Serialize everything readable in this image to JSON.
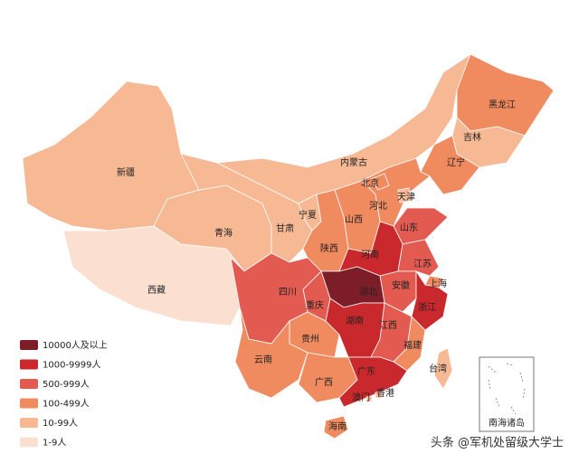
{
  "legend": [
    {
      "label": "10000人及以上",
      "color": "#7d1d28",
      "provinces": [
        "湖北"
      ]
    },
    {
      "label": "1000-9999人",
      "color": "#c9282d",
      "provinces": [
        "河南",
        "湖南",
        "浙江",
        "广东"
      ]
    },
    {
      "label": "500-999人",
      "color": "#e25a50",
      "provinces": [
        "四川",
        "山东",
        "江西",
        "安徽",
        "江苏",
        "重庆"
      ]
    },
    {
      "label": "100-499人",
      "color": "#f08b60",
      "provinces": [
        "黑龙江",
        "辽宁",
        "北京",
        "河北",
        "山西",
        "陕西",
        "上海",
        "福建",
        "云南",
        "贵州",
        "广西",
        "海南"
      ]
    },
    {
      "label": "10-99人",
      "color": "#f7b894",
      "provinces": [
        "新疆",
        "青海",
        "甘肃",
        "宁夏",
        "内蒙古",
        "吉林",
        "天津",
        "台湾",
        "香港",
        "澳门"
      ]
    },
    {
      "label": "1-9人",
      "color": "#fbe0d1",
      "provinces": [
        "西藏"
      ]
    }
  ],
  "inset": {
    "label": "南海诸岛"
  },
  "watermark": "头条 @军机处留级大学士"
}
